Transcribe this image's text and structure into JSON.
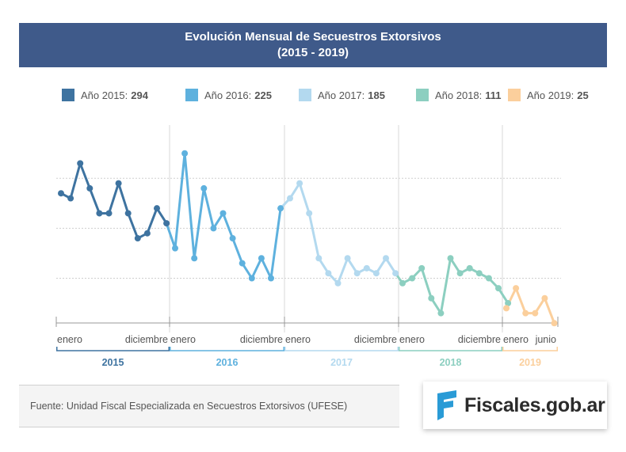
{
  "title": {
    "line1": "Evolución Mensual de Secuestros Extorsivos",
    "line2": "(2015 - 2019)"
  },
  "legend": [
    {
      "label": "Año 2015:",
      "total": "294",
      "color": "#3e73a0"
    },
    {
      "label": "Año 2016:",
      "total": "225",
      "color": "#5eb1de"
    },
    {
      "label": "Año 2017:",
      "total": "185",
      "color": "#b3d9ef"
    },
    {
      "label": "Año 2018:",
      "total": "111",
      "color": "#8ccfc0"
    },
    {
      "label": "Año 2019:",
      "total": "25",
      "color": "#fbcf9c"
    }
  ],
  "source": "Fuente: Unidad Fiscal Especializada en Secuestros Extorsivos (UFESE)",
  "logo": {
    "text": "Fiscales.gob.ar",
    "color": "#2a9bd6"
  },
  "chart_data": {
    "type": "line",
    "title": "Evolución Mensual de Secuestros Extorsivos (2015 - 2019)",
    "xlabel": "",
    "ylabel": "",
    "ylim": [
      0,
      40
    ],
    "grid": true,
    "gridlines_y": [
      10,
      20,
      30
    ],
    "legend_position": "top",
    "series": [
      {
        "name": "Año 2015",
        "total": 294,
        "color": "#3e73a0",
        "start_label": "enero",
        "end_label": "diciembre",
        "year_label": "2015",
        "values": [
          27,
          26,
          33,
          28,
          23,
          23,
          29,
          23,
          18,
          19,
          24,
          21
        ]
      },
      {
        "name": "Año 2016",
        "total": 225,
        "color": "#5eb1de",
        "start_label": "enero",
        "end_label": "diciembre",
        "year_label": "2016",
        "values": [
          16,
          35,
          14,
          28,
          20,
          23,
          18,
          13,
          10,
          14,
          10,
          24
        ]
      },
      {
        "name": "Año 2017",
        "total": 185,
        "color": "#b3d9ef",
        "start_label": "enero",
        "end_label": "diciembre",
        "year_label": "2017",
        "values": [
          26,
          29,
          23,
          14,
          11,
          9,
          14,
          11,
          12,
          11,
          14,
          11
        ]
      },
      {
        "name": "Año 2018",
        "total": 111,
        "color": "#8ccfc0",
        "start_label": "enero",
        "end_label": "diciembre",
        "year_label": "2018",
        "values": [
          9,
          10,
          12,
          6,
          3,
          14,
          11,
          12,
          11,
          10,
          8,
          5
        ]
      },
      {
        "name": "Año 2019",
        "total": 25,
        "color": "#fbcf9c",
        "start_label": "enero",
        "end_label": "junio",
        "year_label": "2019",
        "values": [
          4,
          8,
          3,
          3,
          6,
          1
        ]
      }
    ]
  }
}
